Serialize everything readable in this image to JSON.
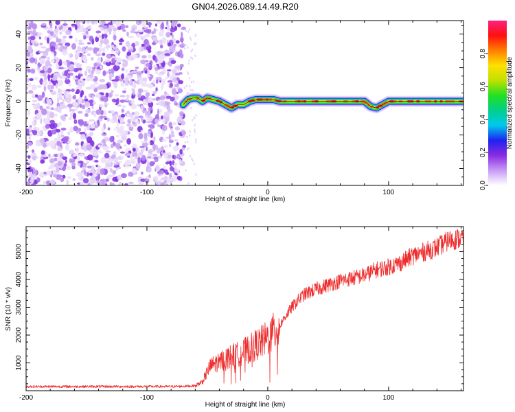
{
  "title": "GN04.2026.089.14.49.R20",
  "chart_data": [
    {
      "type": "heatmap",
      "name": "spectrogram",
      "xlabel": "Height of straight line (km)",
      "ylabel": "Frequency (Hz)",
      "xlim": [
        -200,
        162
      ],
      "ylim": [
        -50,
        48
      ],
      "xticks": [
        -200,
        -100,
        0,
        100
      ],
      "yticks": [
        -40,
        -20,
        0,
        20,
        40
      ],
      "noise_region": {
        "x_start": -200,
        "x_end": -69,
        "sparse_until": -59
      },
      "signal_trace": {
        "x": [
          -70,
          -66,
          -62,
          -58,
          -54,
          -50,
          -45,
          -40,
          -35,
          -30,
          -25,
          -20,
          -15,
          -10,
          -5,
          0,
          5,
          10,
          20,
          40,
          60,
          80,
          85,
          90,
          95,
          100,
          110,
          130,
          150,
          162
        ],
        "y": [
          -2,
          1,
          2,
          2,
          0,
          2,
          1,
          0,
          -2,
          -4,
          -2,
          -2,
          0,
          1,
          1,
          1,
          1,
          0,
          0,
          0,
          0,
          0,
          -3,
          -4,
          -2,
          0,
          0,
          0,
          0,
          0
        ]
      },
      "colorbar": {
        "label": "Normalized spectral amplitude",
        "range": [
          0,
          1
        ],
        "ticks": [
          "0.0",
          "0.2",
          "0.4",
          "0.6",
          "0.8"
        ],
        "ticks_at": [
          0.0,
          0.2,
          0.4,
          0.6,
          0.8
        ],
        "colormap": [
          "#ffffff",
          "#c79bf5",
          "#8b2be2",
          "#1e22f0",
          "#00c8f0",
          "#00d08a",
          "#22e022",
          "#c0e000",
          "#ffe000",
          "#ff8000",
          "#ff1010",
          "#ff2080"
        ]
      }
    },
    {
      "type": "line",
      "name": "snr",
      "xlabel": "Height of straight line (km)",
      "ylabel": "SNR (10 * v/v)",
      "xlim": [
        -200,
        162
      ],
      "ylim": [
        0,
        5900
      ],
      "xticks": [
        -200,
        -100,
        0,
        100
      ],
      "yticks": [
        1000,
        2000,
        3000,
        4000,
        5000
      ],
      "color": "#ee2d2d",
      "series": [
        {
          "name": "SNR",
          "x": [
            -200,
            -180,
            -160,
            -140,
            -120,
            -100,
            -80,
            -70,
            -60,
            -55,
            -52,
            -50,
            -47,
            -45,
            -40,
            -35,
            -30,
            -25,
            -20,
            -15,
            -10,
            -5,
            0,
            5,
            10,
            15,
            20,
            25,
            30,
            40,
            50,
            60,
            70,
            80,
            90,
            100,
            110,
            120,
            130,
            140,
            150,
            162
          ],
          "y": [
            150,
            150,
            150,
            150,
            150,
            150,
            150,
            160,
            180,
            300,
            500,
            700,
            900,
            950,
            1050,
            1150,
            1250,
            1300,
            1400,
            1500,
            1650,
            1750,
            1900,
            2100,
            2350,
            2700,
            3000,
            3250,
            3450,
            3650,
            3800,
            3950,
            4050,
            4150,
            4350,
            4450,
            4600,
            4850,
            5000,
            5150,
            5400,
            5500
          ]
        }
      ]
    }
  ]
}
